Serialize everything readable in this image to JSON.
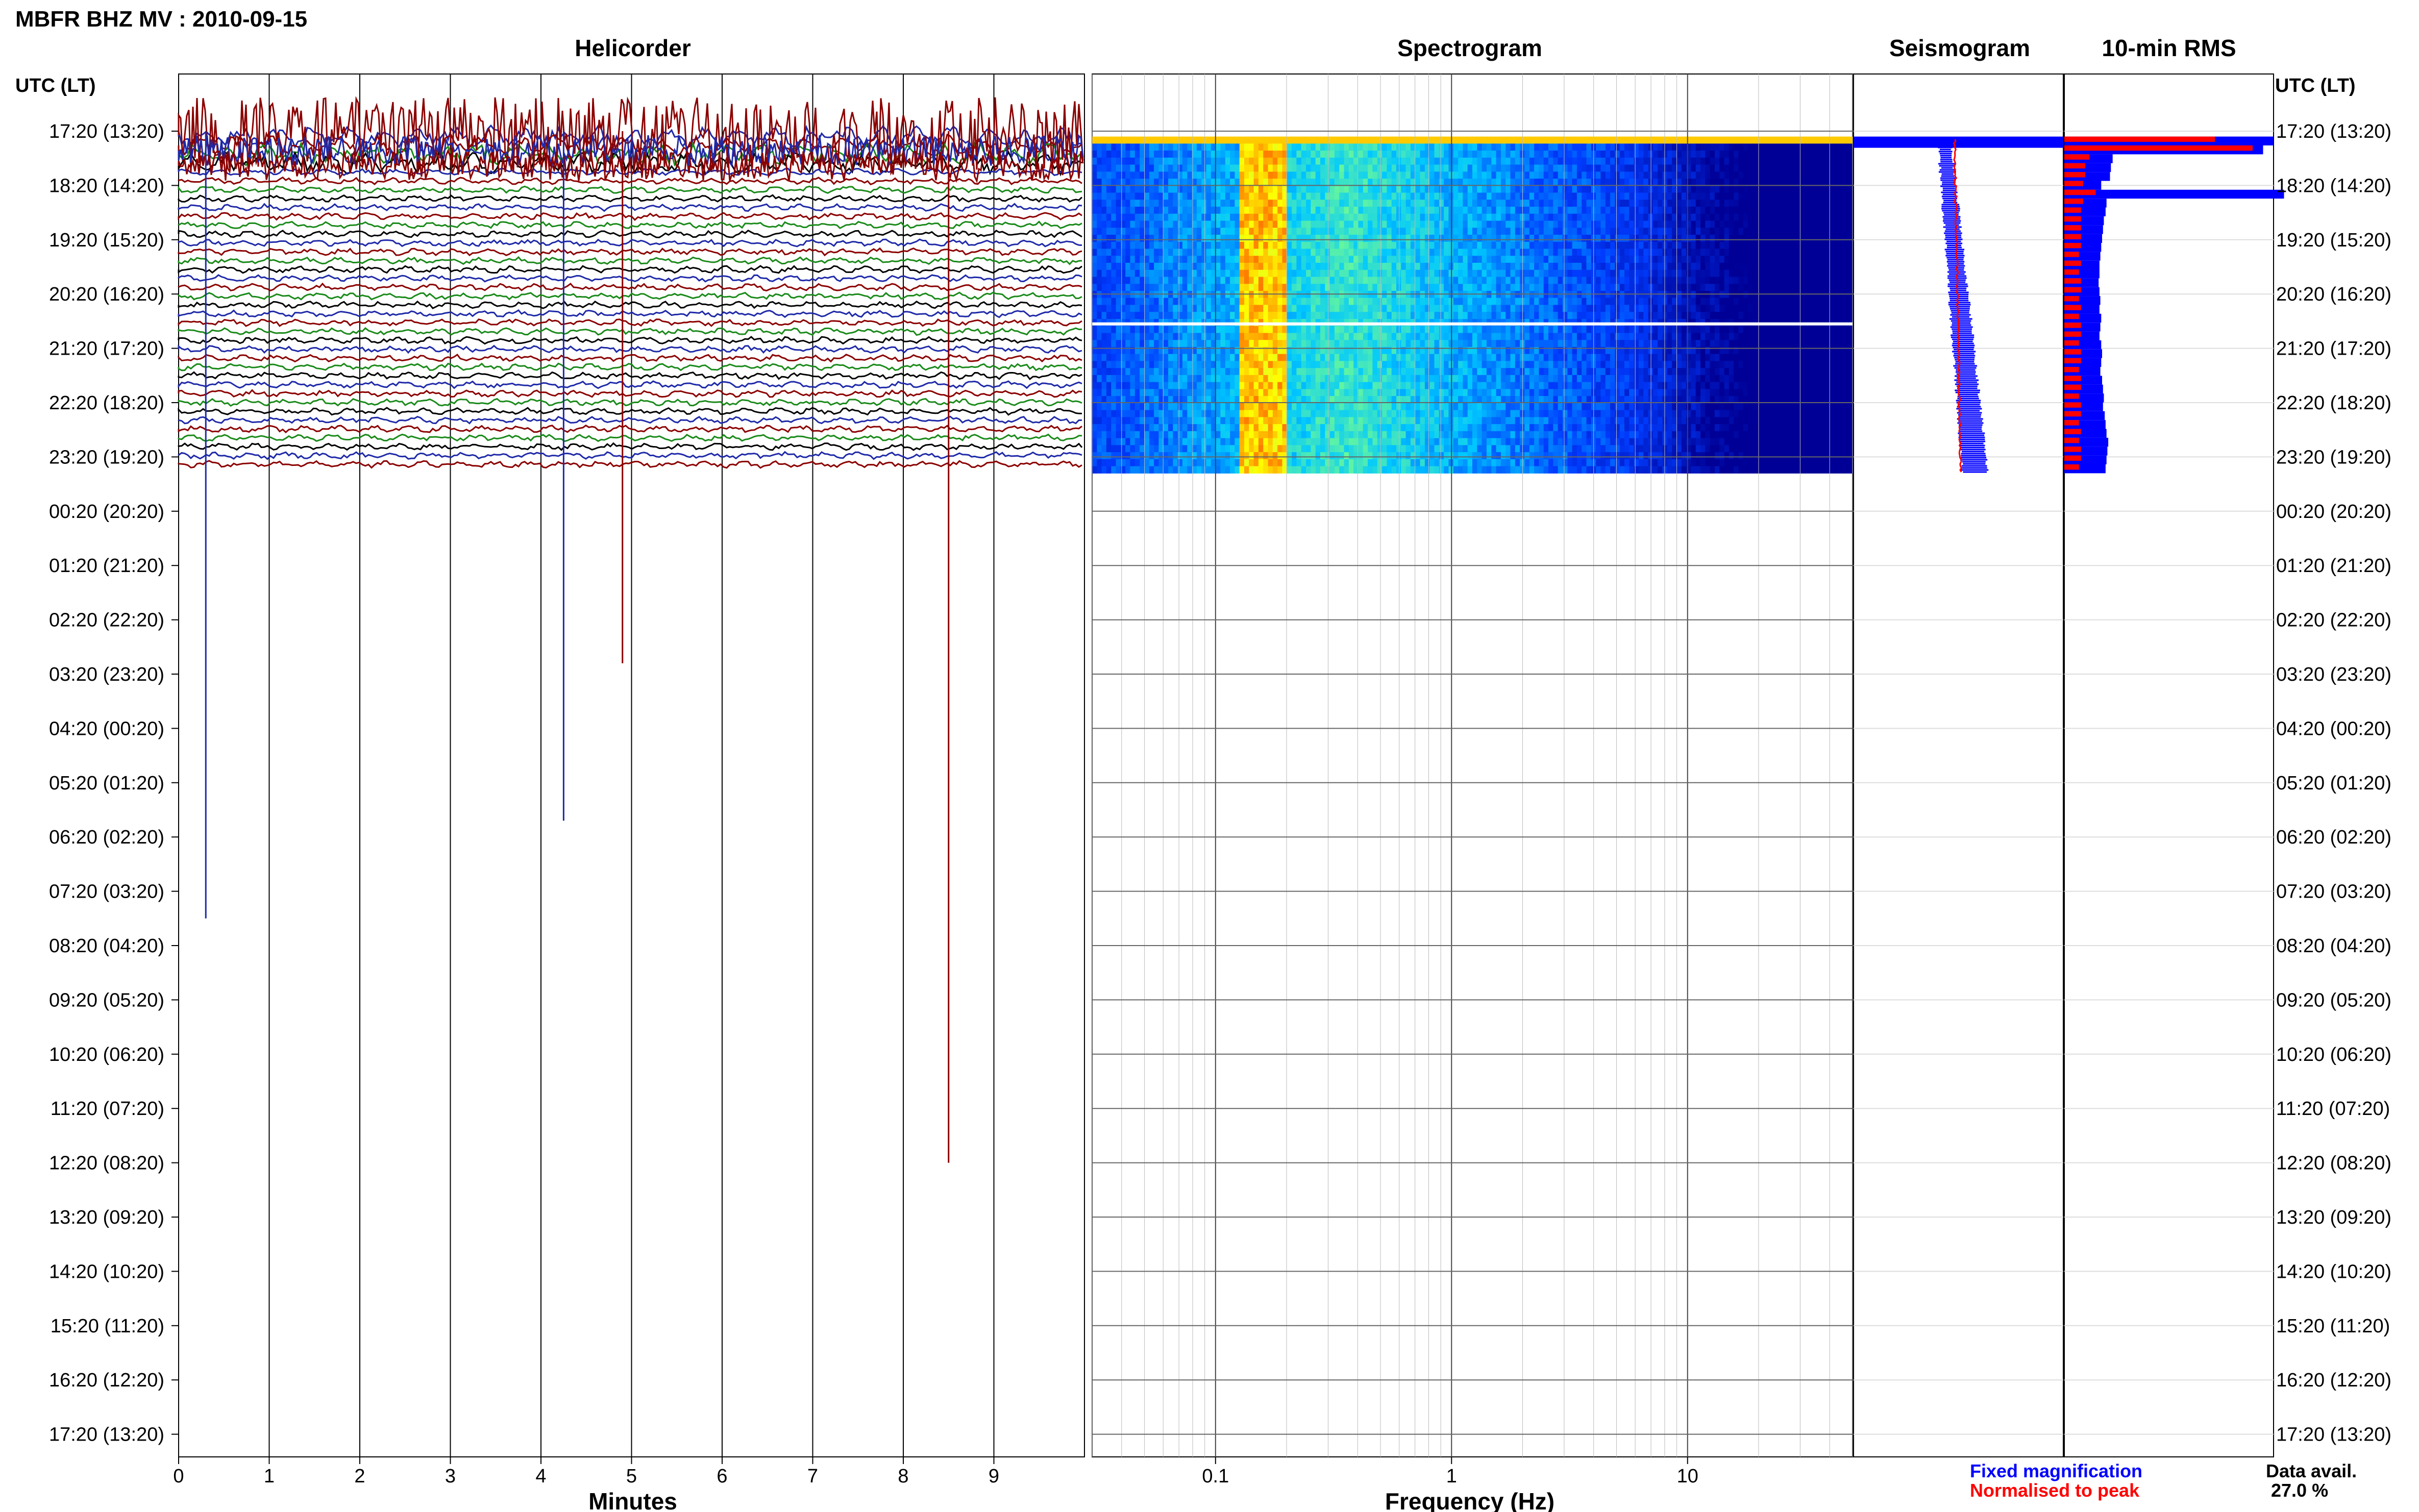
{
  "page": {
    "title": "MBFR BHZ MV : 2010-09-15",
    "timezone_header_left": "UTC (LT)",
    "timezone_header_right": "UTC",
    "legend_fixed": "Fixed magnification",
    "legend_normalised": "Normalised to peak",
    "data_avail_label": "Data avail.",
    "data_avail_value": "27.0 %",
    "colors": {
      "blue": "#0000ff",
      "red": "#ff0000",
      "trace_blue": "#1f2aa8",
      "trace_red": "#8b0000",
      "trace_green": "#1a8a1a",
      "trace_black": "#000000"
    }
  },
  "chart_data": [
    {
      "type": "line",
      "title": "Helicorder",
      "xlabel": "Minutes",
      "x_ticks": [
        "0",
        "1",
        "2",
        "3",
        "4",
        "5",
        "6",
        "7",
        "8",
        "9"
      ],
      "xlim": [
        0,
        10
      ],
      "row_labels": [
        "17:20 (13:20)",
        "18:20 (14:20)",
        "19:20 (15:20)",
        "20:20 (16:20)",
        "21:20 (17:20)",
        "22:20 (18:20)",
        "23:20 (19:20)",
        "00:20 (20:20)",
        "01:20 (21:20)",
        "02:20 (22:20)",
        "03:20 (23:20)",
        "04:20 (00:20)",
        "05:20 (01:20)",
        "06:20 (02:20)",
        "07:20 (03:20)",
        "08:20 (04:20)",
        "09:20 (05:20)",
        "10:20 (06:20)",
        "11:20 (07:20)",
        "12:20 (08:20)",
        "13:20 (09:20)",
        "14:20 (10:20)",
        "15:20 (11:20)",
        "16:20 (12:20)",
        "17:20 (13:20)"
      ],
      "trace_colors": [
        "trace_blue",
        "trace_red",
        "trace_green",
        "trace_black"
      ],
      "data_end_hours_after_start": 6.3,
      "spikes": [
        {
          "minute": 0.3,
          "extends_to_row": 14.5,
          "color": "trace_blue"
        },
        {
          "minute": 4.25,
          "extends_to_row": 12.7,
          "color": "trace_blue"
        },
        {
          "minute": 4.9,
          "extends_to_row": 9.8,
          "color": "trace_red"
        },
        {
          "minute": 8.5,
          "extends_to_row": 19.0,
          "color": "trace_red"
        }
      ]
    },
    {
      "type": "heatmap",
      "title": "Spectrogram",
      "xlabel": "Frequency (Hz)",
      "x_scale": "log",
      "xlim": [
        0.03,
        50
      ],
      "x_ticks": [
        "0.1",
        "1",
        "10"
      ],
      "data_end_hours_after_start": 6.3
    },
    {
      "type": "line",
      "title": "Seismogram",
      "series": [
        {
          "name": "Fixed magnification",
          "color": "blue"
        },
        {
          "name": "Normalised to peak",
          "color": "red"
        }
      ]
    },
    {
      "type": "bar",
      "title": "10-min RMS",
      "orientation": "horizontal",
      "rms_relative": [
        1.0,
        0.95,
        0.55,
        0.53,
        0.52,
        0.42,
        1.05,
        0.48,
        0.47,
        0.45,
        0.44,
        0.43,
        0.42,
        0.41,
        0.4,
        0.4,
        0.39,
        0.4,
        0.41,
        0.4,
        0.42,
        0.41,
        0.4,
        0.42,
        0.43,
        0.42,
        0.41,
        0.43,
        0.44,
        0.45,
        0.44,
        0.46,
        0.47,
        0.48,
        0.5,
        0.49,
        0.48,
        0.47
      ],
      "normalised_relative": [
        0.72,
        0.9,
        0.12,
        0.1,
        0.1,
        0.09,
        0.15,
        0.09,
        0.08,
        0.08,
        0.08,
        0.08,
        0.08,
        0.07,
        0.08,
        0.07,
        0.08,
        0.08,
        0.07,
        0.08,
        0.07,
        0.08,
        0.08,
        0.07,
        0.08,
        0.08,
        0.07,
        0.08,
        0.08,
        0.07,
        0.08,
        0.08,
        0.07,
        0.08,
        0.07,
        0.08,
        0.08,
        0.07
      ]
    }
  ]
}
